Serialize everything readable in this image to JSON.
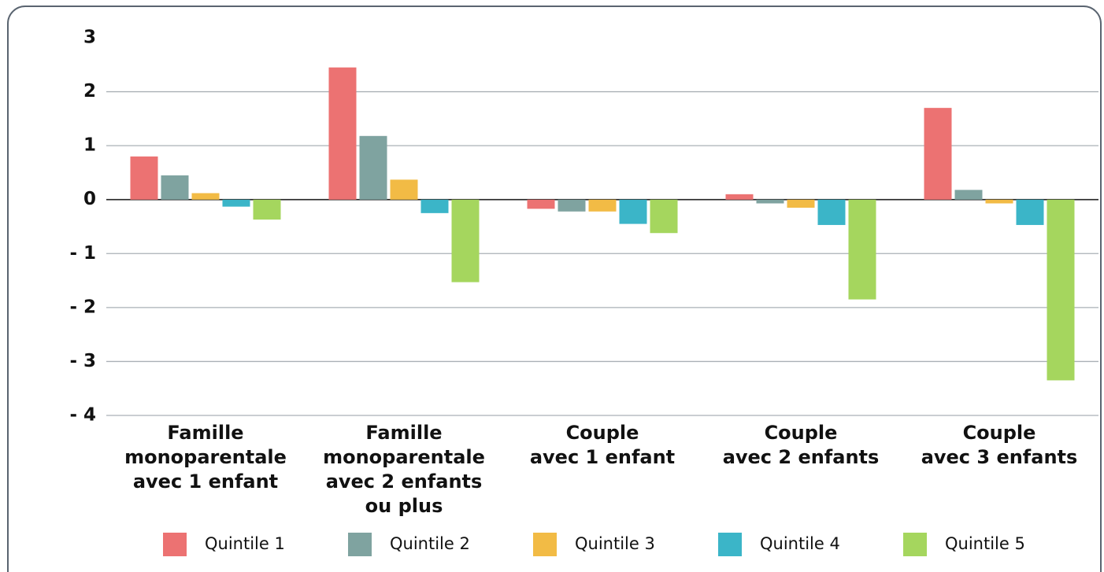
{
  "chart_data": {
    "type": "bar",
    "categories": [
      [
        "Famille",
        "monoparentale",
        "avec 1 enfant"
      ],
      [
        "Famille",
        "monoparentale",
        "avec 2 enfants",
        "ou plus"
      ],
      [
        "Couple",
        "avec 1 enfant"
      ],
      [
        "Couple",
        "avec 2 enfants"
      ],
      [
        "Couple",
        "avec 3 enfants"
      ]
    ],
    "series": [
      {
        "name": "Quintile 1",
        "color": "#ec7272",
        "values": [
          0.8,
          2.45,
          -0.17,
          0.1,
          1.7
        ]
      },
      {
        "name": "Quintile 2",
        "color": "#7fa3a0",
        "values": [
          0.45,
          1.18,
          -0.22,
          -0.07,
          0.18
        ]
      },
      {
        "name": "Quintile 3",
        "color": "#f2bb45",
        "values": [
          0.12,
          0.37,
          -0.22,
          -0.15,
          -0.07
        ]
      },
      {
        "name": "Quintile 4",
        "color": "#3bb5c8",
        "values": [
          -0.13,
          -0.25,
          -0.45,
          -0.47,
          -0.47
        ]
      },
      {
        "name": "Quintile 5",
        "color": "#a5d65e",
        "values": [
          -0.37,
          -1.53,
          -0.62,
          -1.85,
          -3.35
        ]
      }
    ],
    "ylim": [
      -4,
      3
    ],
    "yticks": [
      3,
      2,
      1,
      0,
      {
        "value": -1,
        "label": "- 1"
      },
      {
        "value": -2,
        "label": "- 2"
      },
      {
        "value": -3,
        "label": "- 3"
      },
      {
        "value": -4,
        "label": "- 4"
      }
    ],
    "grid": true,
    "legend": "bottom"
  }
}
